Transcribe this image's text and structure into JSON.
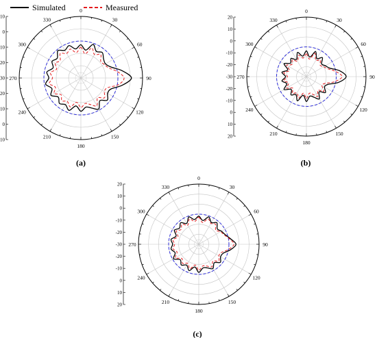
{
  "legend": {
    "items": [
      {
        "label": "Simulated",
        "color": "#000000",
        "dash": "solid"
      },
      {
        "label": "Measured",
        "color": "#e41a1c",
        "dash": "dashed"
      }
    ]
  },
  "chart_data": [
    {
      "type": "polar-line",
      "panel_label": "(a)",
      "angle_labels": [
        "0",
        "30",
        "60",
        "90",
        "120",
        "150",
        "180",
        "210",
        "240",
        "270",
        "300",
        "330"
      ],
      "radial_labels": [
        "10",
        "0",
        "-10",
        "-20",
        "-30",
        "-20",
        "-10",
        "0",
        "10"
      ],
      "radial_range": [
        -40,
        10
      ],
      "radial_tick_values": [
        10,
        0,
        -10,
        -20,
        -30
      ],
      "reference_circle_db": -10,
      "reference_circle_color": "#2b2bd9",
      "grid": true,
      "series": [
        {
          "name": "Simulated",
          "color": "#000000",
          "dash": "solid",
          "angles": [
            0,
            10,
            20,
            30,
            40,
            50,
            60,
            70,
            80,
            90,
            100,
            110,
            120,
            130,
            140,
            150,
            160,
            170,
            180,
            190,
            200,
            210,
            220,
            230,
            240,
            250,
            260,
            270,
            280,
            290,
            300,
            310,
            320,
            330,
            340,
            350
          ],
          "values": [
            -13,
            -17,
            -11,
            -15,
            -13,
            -16,
            -17,
            -14,
            -6,
            1,
            -6,
            -14,
            -15,
            -12,
            -16,
            -11,
            -14,
            -16,
            -13,
            -17,
            -12,
            -15,
            -13,
            -16,
            -12,
            -15,
            -11,
            -14,
            -12,
            -16,
            -13,
            -15,
            -11,
            -14,
            -12,
            -16
          ]
        },
        {
          "name": "Measured",
          "color": "#e41a1c",
          "dash": "dashed",
          "angles": [
            0,
            10,
            20,
            30,
            40,
            50,
            60,
            70,
            80,
            90,
            100,
            110,
            120,
            130,
            140,
            150,
            160,
            170,
            180,
            190,
            200,
            210,
            220,
            230,
            240,
            250,
            260,
            270,
            280,
            290,
            300,
            310,
            320,
            330,
            340,
            350
          ],
          "values": [
            -15,
            -20,
            -14,
            -18,
            -15,
            -19,
            -18,
            -16,
            -10,
            -5,
            -9,
            -17,
            -18,
            -15,
            -19,
            -14,
            -17,
            -19,
            -16,
            -20,
            -15,
            -18,
            -16,
            -19,
            -15,
            -18,
            -14,
            -17,
            -15,
            -19,
            -16,
            -18,
            -14,
            -17,
            -15,
            -19
          ]
        }
      ]
    },
    {
      "type": "polar-line",
      "panel_label": "(b)",
      "angle_labels": [
        "0",
        "30",
        "60",
        "90",
        "120",
        "150",
        "180",
        "210",
        "240",
        "270",
        "300",
        "330"
      ],
      "radial_labels": [
        "20",
        "10",
        "0",
        "-10",
        "-20",
        "-30",
        "-20",
        "-10",
        "0",
        "10",
        "20"
      ],
      "radial_range": [
        -40,
        20
      ],
      "radial_tick_values": [
        20,
        10,
        0,
        -10,
        -20,
        -30
      ],
      "reference_circle_db": -10,
      "reference_circle_color": "#2b2bd9",
      "grid": true,
      "series": [
        {
          "name": "Simulated",
          "color": "#000000",
          "dash": "solid",
          "angles": [
            0,
            10,
            20,
            30,
            40,
            50,
            60,
            70,
            80,
            90,
            100,
            110,
            120,
            130,
            140,
            150,
            160,
            170,
            180,
            190,
            200,
            210,
            220,
            230,
            240,
            250,
            260,
            270,
            280,
            290,
            300,
            310,
            320,
            330,
            340,
            350
          ],
          "values": [
            -14,
            -20,
            -13,
            -19,
            -15,
            -20,
            -18,
            -15,
            -6,
            0,
            -7,
            -17,
            -19,
            -15,
            -20,
            -14,
            -18,
            -20,
            -15,
            -21,
            -14,
            -19,
            -16,
            -20,
            -14,
            -19,
            -15,
            -19,
            -15,
            -20,
            -14,
            -19,
            -16,
            -20,
            -14,
            -19
          ]
        },
        {
          "name": "Measured",
          "color": "#e41a1c",
          "dash": "dashed",
          "angles": [
            0,
            10,
            20,
            30,
            40,
            50,
            60,
            70,
            80,
            90,
            100,
            110,
            120,
            130,
            140,
            150,
            160,
            170,
            180,
            190,
            200,
            210,
            220,
            230,
            240,
            250,
            260,
            270,
            280,
            290,
            300,
            310,
            320,
            330,
            340,
            350
          ],
          "values": [
            -17,
            -22,
            -15,
            -21,
            -18,
            -22,
            -20,
            -17,
            -10,
            -4,
            -11,
            -20,
            -22,
            -17,
            -22,
            -17,
            -21,
            -23,
            -18,
            -23,
            -17,
            -21,
            -18,
            -22,
            -17,
            -21,
            -17,
            -21,
            -17,
            -22,
            -17,
            -21,
            -18,
            -22,
            -17,
            -21
          ]
        }
      ]
    },
    {
      "type": "polar-line",
      "panel_label": "(c)",
      "angle_labels": [
        "0",
        "30",
        "60",
        "90",
        "120",
        "150",
        "180",
        "210",
        "240",
        "270",
        "300",
        "330"
      ],
      "radial_labels": [
        "20",
        "10",
        "0",
        "-10",
        "-20",
        "-30",
        "-20",
        "-10",
        "0",
        "10",
        "20"
      ],
      "radial_range": [
        -40,
        20
      ],
      "radial_tick_values": [
        20,
        10,
        0,
        -10,
        -20,
        -30
      ],
      "reference_circle_db": -10,
      "reference_circle_color": "#2b2bd9",
      "grid": true,
      "series": [
        {
          "name": "Simulated",
          "color": "#000000",
          "dash": "solid",
          "angles": [
            0,
            10,
            20,
            30,
            40,
            50,
            60,
            70,
            80,
            90,
            100,
            110,
            120,
            130,
            140,
            150,
            160,
            170,
            180,
            190,
            200,
            210,
            220,
            230,
            240,
            250,
            260,
            270,
            280,
            290,
            300,
            310,
            320,
            330,
            340,
            350
          ],
          "values": [
            -12,
            -16,
            -11,
            -15,
            -12,
            -16,
            -14,
            -12,
            -8,
            -3,
            -8,
            -14,
            -15,
            -12,
            -16,
            -12,
            -15,
            -16,
            -12,
            -17,
            -12,
            -16,
            -13,
            -16,
            -11,
            -15,
            -12,
            -14,
            -12,
            -16,
            -12,
            -15,
            -12,
            -16,
            -11,
            -15
          ]
        },
        {
          "name": "Measured",
          "color": "#e41a1c",
          "dash": "dashed",
          "angles": [
            0,
            10,
            20,
            30,
            40,
            50,
            60,
            70,
            80,
            90,
            100,
            110,
            120,
            130,
            140,
            150,
            160,
            170,
            180,
            190,
            200,
            210,
            220,
            230,
            240,
            250,
            260,
            270,
            280,
            290,
            300,
            310,
            320,
            330,
            340,
            350
          ],
          "values": [
            -13,
            -18,
            -13,
            -16,
            -14,
            -18,
            -15,
            -13,
            -9,
            -5,
            -10,
            -16,
            -17,
            -14,
            -18,
            -14,
            -17,
            -18,
            -14,
            -19,
            -14,
            -18,
            -15,
            -18,
            -13,
            -17,
            -14,
            -16,
            -14,
            -18,
            -14,
            -17,
            -14,
            -18,
            -13,
            -17
          ]
        }
      ]
    }
  ]
}
